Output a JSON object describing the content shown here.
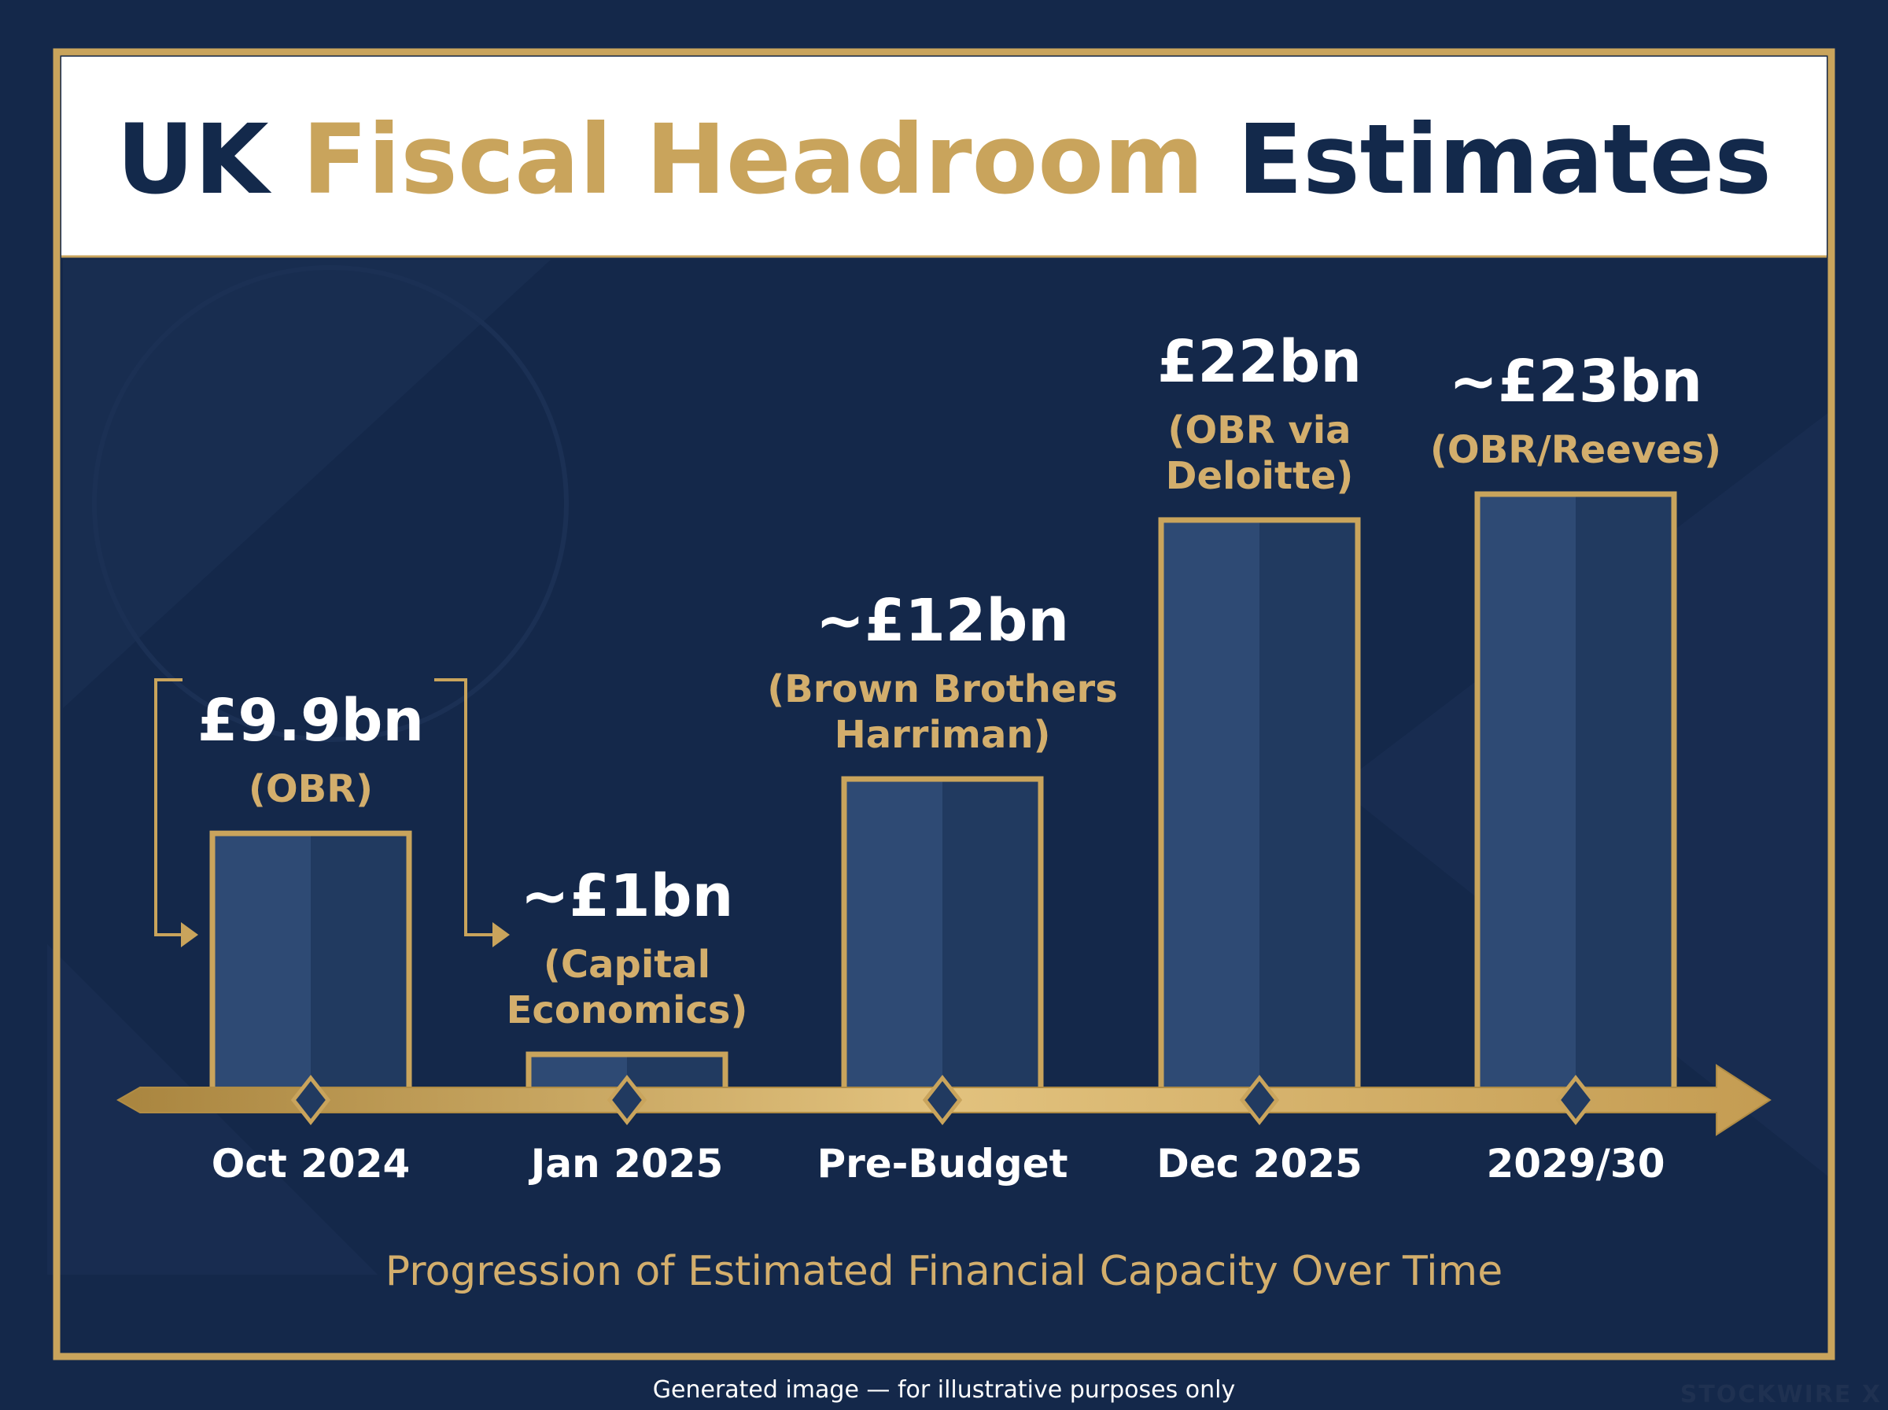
{
  "chart_data": {
    "type": "bar",
    "title_parts": [
      {
        "text": "UK",
        "color": "#13294b"
      },
      {
        "text": "Fiscal Headroom",
        "color": "#c9a45c"
      },
      {
        "text": "Estimates",
        "color": "#13294b"
      }
    ],
    "subtitle": "Progression of Estimated Financial Capacity Over Time",
    "categories": [
      "Oct 2024",
      "Jan 2025",
      "Pre-Budget",
      "Dec 2025",
      "2029/30"
    ],
    "values": [
      9.9,
      1,
      12,
      22,
      23
    ],
    "value_labels": [
      "£9.9bn",
      "~£1bn",
      "~£12bn",
      "£22bn",
      "~£23bn"
    ],
    "sources": [
      [
        "(OBR)"
      ],
      [
        "(Capital",
        "Economics)"
      ],
      [
        "(Brown Brothers",
        "Harriman)"
      ],
      [
        "(OBR via",
        "Deloitte)"
      ],
      [
        "(OBR/Reeves)"
      ]
    ],
    "unit": "£bn",
    "ylim": [
      0,
      23
    ],
    "grid": false,
    "legend": "none",
    "colors": {
      "background": "#14284a",
      "bar_light": "#2e4a74",
      "bar_dark": "#213a60",
      "gold": "#c9a45c",
      "gold_text": "#d3ae6c",
      "header_bg": "#ffffff"
    }
  },
  "footer": {
    "disclaimer": "Generated image — for illustrative purposes only",
    "brand": "STOCKWIRE X"
  }
}
